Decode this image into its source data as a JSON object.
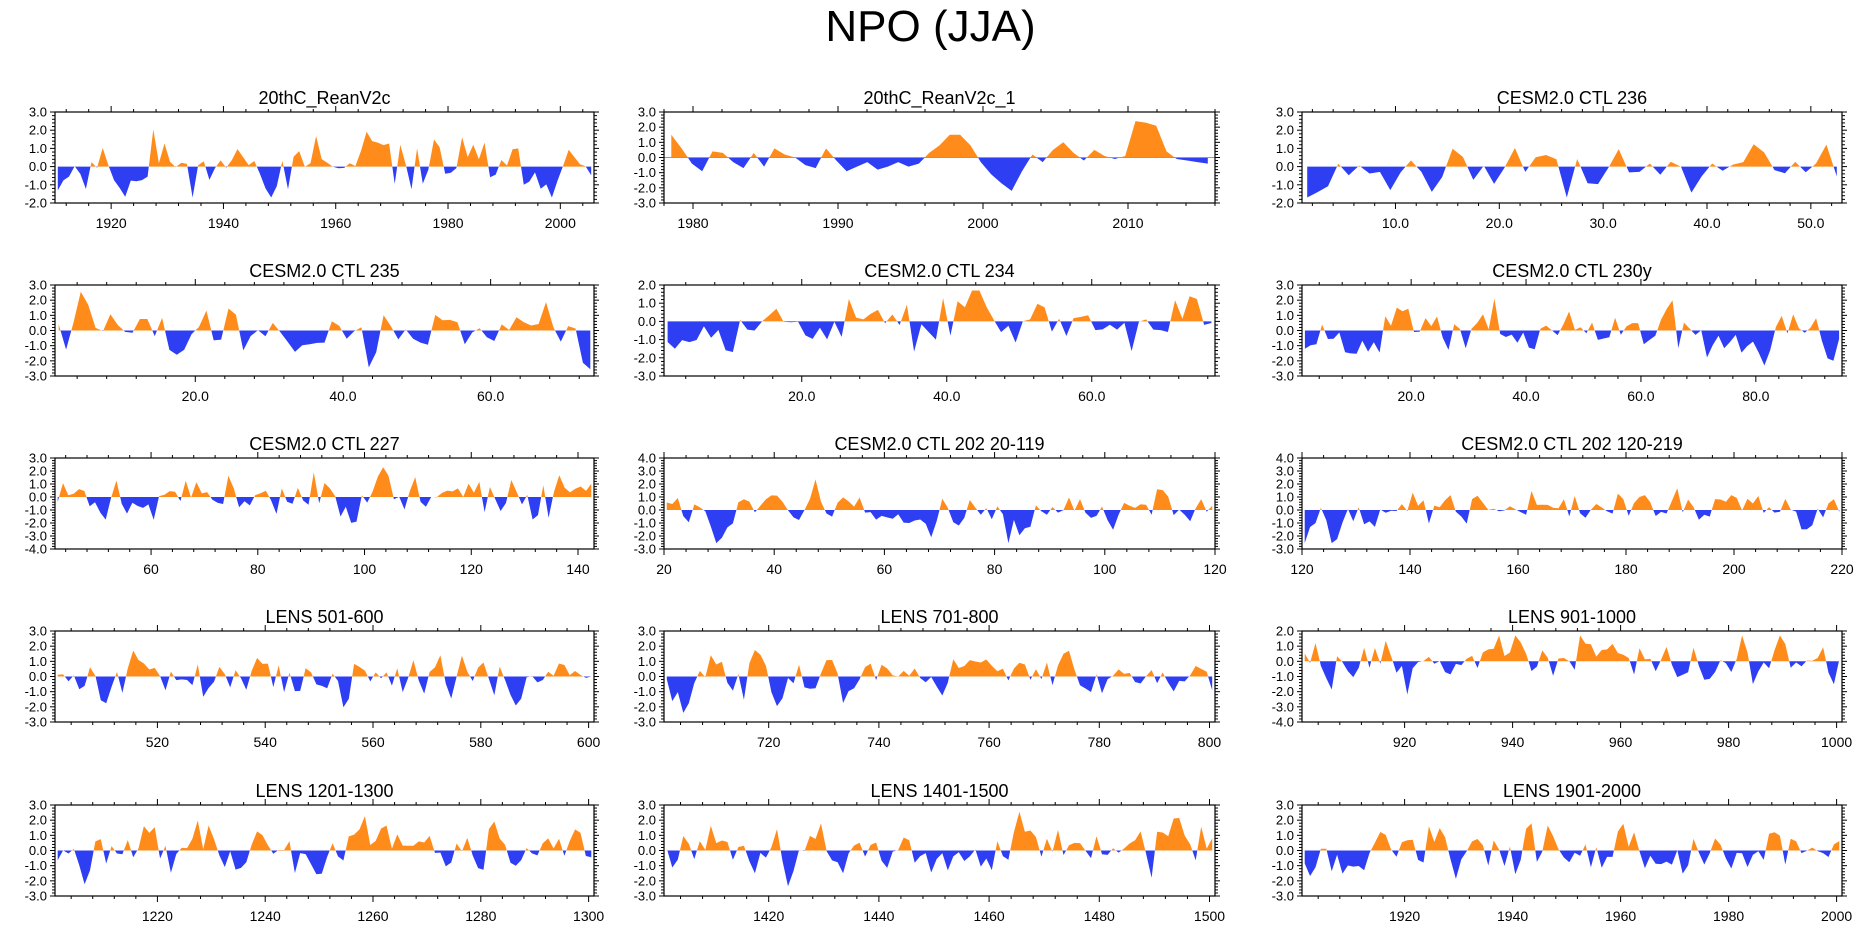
{
  "figure_title": "NPO (JJA)",
  "colors": {
    "positive": "#ff8c1a",
    "negative": "#2e3ef2",
    "axis": "#000000"
  },
  "chart_data": [
    {
      "type": "area",
      "title": "20thC_ReanV2c",
      "xlim": [
        1910,
        2006
      ],
      "ylim": [
        -2,
        3
      ],
      "yticks": [
        -2,
        -1,
        0,
        1,
        2,
        3
      ],
      "xticks": [
        1920,
        1940,
        1960,
        1980,
        2000
      ],
      "xtick_labels": [
        "1920",
        "1940",
        "1960",
        "1980",
        "2000"
      ],
      "seed": 11,
      "baseline_line": false
    },
    {
      "type": "area",
      "title": "20thC_ReanV2c_1",
      "xlim": [
        1978,
        2016
      ],
      "ylim": [
        -3,
        3
      ],
      "yticks": [
        -3,
        -2,
        -1,
        0,
        1,
        2,
        3
      ],
      "xticks": [
        1980,
        1990,
        2000,
        2010
      ],
      "xtick_labels": [
        "1980",
        "1990",
        "2000",
        "2010"
      ],
      "seed": 23,
      "baseline_line": true,
      "values": [
        1.5,
        0.6,
        -0.4,
        -0.9,
        0.4,
        0.3,
        -0.3,
        -0.7,
        0.3,
        -0.6,
        0.6,
        0.2,
        0.0,
        -0.5,
        -0.7,
        0.6,
        -0.2,
        -0.9,
        -0.6,
        -0.3,
        -0.8,
        -0.6,
        -0.3,
        -0.6,
        -0.4,
        0.3,
        0.8,
        1.5,
        1.5,
        0.8,
        -0.3,
        -1.1,
        -1.7,
        -2.2,
        -0.9,
        0.2,
        -0.3,
        0.5,
        1.0,
        0.3,
        -0.2,
        0.5,
        0.1,
        -0.1,
        0.1,
        2.4,
        2.3,
        2.1,
        0.4,
        -0.1,
        -0.2,
        -0.3,
        -0.4
      ]
    },
    {
      "type": "area",
      "title": "CESM2.0 CTL 236",
      "xlim": [
        1,
        53
      ],
      "ylim": [
        -2,
        3
      ],
      "yticks": [
        -2,
        -1,
        0,
        1,
        2,
        3
      ],
      "xticks": [
        10,
        20,
        30,
        40,
        50
      ],
      "xtick_labels": [
        "10.0",
        "20.0",
        "30.0",
        "40.0",
        "50.0"
      ],
      "seed": 37,
      "baseline_line": false
    },
    {
      "type": "area",
      "title": "CESM2.0 CTL 235",
      "xlim": [
        1,
        74
      ],
      "ylim": [
        -3,
        3
      ],
      "yticks": [
        -3,
        -2,
        -1,
        0,
        1,
        2,
        3
      ],
      "xticks": [
        20,
        40,
        60
      ],
      "xtick_labels": [
        "20.0",
        "40.0",
        "60.0"
      ],
      "seed": 41,
      "baseline_line": false
    },
    {
      "type": "area",
      "title": "CESM2.0 CTL 234",
      "xlim": [
        1,
        77
      ],
      "ylim": [
        -3,
        2
      ],
      "yticks": [
        -3,
        -2,
        -1,
        0,
        1,
        2
      ],
      "xticks": [
        20,
        40,
        60
      ],
      "xtick_labels": [
        "20.0",
        "40.0",
        "60.0"
      ],
      "seed": 53,
      "baseline_line": false
    },
    {
      "type": "area",
      "title": "CESM2.0 CTL 230y",
      "xlim": [
        1,
        95
      ],
      "ylim": [
        -3,
        3
      ],
      "yticks": [
        -3,
        -2,
        -1,
        0,
        1,
        2,
        3
      ],
      "xticks": [
        20,
        40,
        60,
        80
      ],
      "xtick_labels": [
        "20.0",
        "40.0",
        "60.0",
        "80.0"
      ],
      "seed": 67,
      "baseline_line": false
    },
    {
      "type": "area",
      "title": "CESM2.0 CTL 227",
      "xlim": [
        42,
        143
      ],
      "ylim": [
        -4,
        3
      ],
      "yticks": [
        -4,
        -3,
        -2,
        -1,
        0,
        1,
        2,
        3
      ],
      "xticks": [
        60,
        80,
        100,
        120,
        140
      ],
      "xtick_labels": [
        "60",
        "80",
        "100",
        "120",
        "140"
      ],
      "seed": 71,
      "baseline_line": false
    },
    {
      "type": "area",
      "title": "CESM2.0 CTL 202 20-119",
      "xlim": [
        20,
        120
      ],
      "ylim": [
        -3,
        4
      ],
      "yticks": [
        -3,
        -2,
        -1,
        0,
        1,
        2,
        3,
        4
      ],
      "xticks": [
        20,
        40,
        60,
        80,
        100,
        120
      ],
      "xtick_labels": [
        "20",
        "40",
        "60",
        "80",
        "100",
        "120"
      ],
      "seed": 83,
      "baseline_line": false
    },
    {
      "type": "area",
      "title": "CESM2.0 CTL 202 120-219",
      "xlim": [
        120,
        220
      ],
      "ylim": [
        -3,
        4
      ],
      "yticks": [
        -3,
        -2,
        -1,
        0,
        1,
        2,
        3,
        4
      ],
      "xticks": [
        120,
        140,
        160,
        180,
        200,
        220
      ],
      "xtick_labels": [
        "120",
        "140",
        "160",
        "180",
        "200",
        "220"
      ],
      "seed": 97,
      "baseline_line": false
    },
    {
      "type": "area",
      "title": "LENS 501-600",
      "xlim": [
        501,
        601
      ],
      "ylim": [
        -3,
        3
      ],
      "yticks": [
        -3,
        -2,
        -1,
        0,
        1,
        2,
        3
      ],
      "xticks": [
        520,
        540,
        560,
        580,
        600
      ],
      "xtick_labels": [
        "520",
        "540",
        "560",
        "580",
        "600"
      ],
      "seed": 101,
      "baseline_line": false
    },
    {
      "type": "area",
      "title": "LENS 701-800",
      "xlim": [
        701,
        801
      ],
      "ylim": [
        -3,
        3
      ],
      "yticks": [
        -3,
        -2,
        -1,
        0,
        1,
        2,
        3
      ],
      "xticks": [
        720,
        740,
        760,
        780,
        800
      ],
      "xtick_labels": [
        "720",
        "740",
        "760",
        "780",
        "800"
      ],
      "seed": 113,
      "baseline_line": false
    },
    {
      "type": "area",
      "title": "LENS 901-1000",
      "xlim": [
        901,
        1001
      ],
      "ylim": [
        -4,
        2
      ],
      "yticks": [
        -4,
        -3,
        -2,
        -1,
        0,
        1,
        2
      ],
      "xticks": [
        920,
        940,
        960,
        980,
        1000
      ],
      "xtick_labels": [
        "920",
        "940",
        "960",
        "980",
        "1000"
      ],
      "seed": 127,
      "baseline_line": false
    },
    {
      "type": "area",
      "title": "LENS 1201-1300",
      "xlim": [
        1201,
        1301
      ],
      "ylim": [
        -3,
        3
      ],
      "yticks": [
        -3,
        -2,
        -1,
        0,
        1,
        2,
        3
      ],
      "xticks": [
        1220,
        1240,
        1260,
        1280,
        1300
      ],
      "xtick_labels": [
        "1220",
        "1240",
        "1260",
        "1280",
        "1300"
      ],
      "seed": 131,
      "baseline_line": false
    },
    {
      "type": "area",
      "title": "LENS 1401-1500",
      "xlim": [
        1401,
        1501
      ],
      "ylim": [
        -3,
        3
      ],
      "yticks": [
        -3,
        -2,
        -1,
        0,
        1,
        2,
        3
      ],
      "xticks": [
        1420,
        1440,
        1460,
        1480,
        1500
      ],
      "xtick_labels": [
        "1420",
        "1440",
        "1460",
        "1480",
        "1500"
      ],
      "seed": 149,
      "baseline_line": false
    },
    {
      "type": "area",
      "title": "LENS 1901-2000",
      "xlim": [
        1901,
        2001
      ],
      "ylim": [
        -3,
        3
      ],
      "yticks": [
        -3,
        -2,
        -1,
        0,
        1,
        2,
        3
      ],
      "xticks": [
        1920,
        1940,
        1960,
        1980,
        2000
      ],
      "xtick_labels": [
        "1920",
        "1940",
        "1960",
        "1980",
        "2000"
      ],
      "seed": 157,
      "baseline_line": false
    }
  ]
}
